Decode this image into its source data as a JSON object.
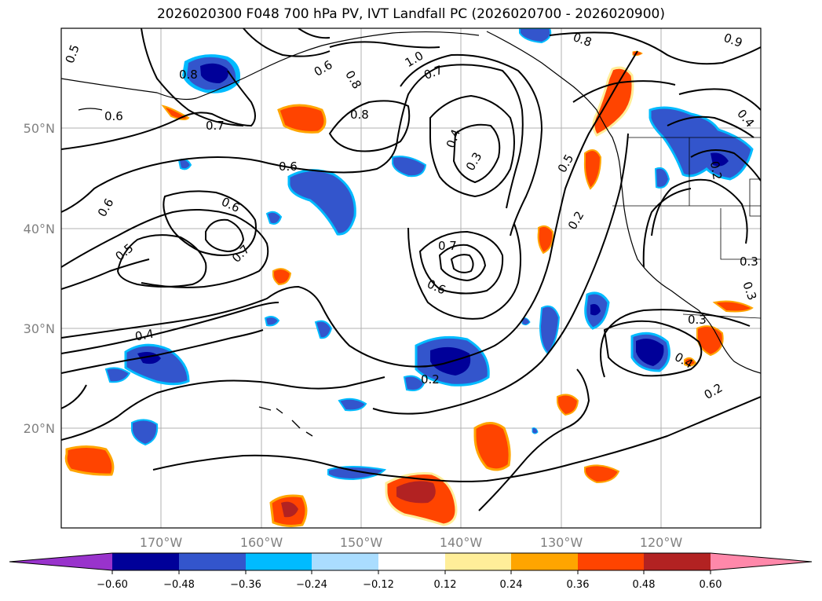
{
  "title": "2026020300 F048 700 hPa PV, IVT Landfall PC (2026020700 - 2026020900)",
  "map": {
    "lon_labels": [
      "170°W",
      "160°W",
      "150°W",
      "140°W",
      "130°W",
      "120°W"
    ],
    "lat_labels": [
      "50°N",
      "40°N",
      "30°N",
      "20°N"
    ],
    "contour_labels": [
      "0.5",
      "0.8",
      "0.6",
      "0.7",
      "0.6",
      "0.8",
      "0.8",
      "1.0",
      "0.7",
      "0.8",
      "0.9",
      "0.4",
      "0.3",
      "0.5",
      "0.6",
      "0.6",
      "0.6",
      "0.5",
      "0.7",
      "0.7",
      "0.6",
      "0.4",
      "0.2",
      "0.2",
      "0.3",
      "0.3",
      "0.3",
      "0.4",
      "0.2",
      "0.4",
      "0.2"
    ]
  },
  "colorbar": {
    "tick_labels": [
      "−0.60",
      "−0.48",
      "−0.36",
      "−0.24",
      "−0.12",
      "0.12",
      "0.24",
      "0.36",
      "0.48",
      "0.60"
    ],
    "colors": [
      "#9933cc",
      "#000099",
      "#3355cc",
      "#00bbff",
      "#aaddff",
      "#ffffff",
      "#ffee99",
      "#ffa500",
      "#ff4400",
      "#b22222",
      "#ff88aa"
    ]
  }
}
